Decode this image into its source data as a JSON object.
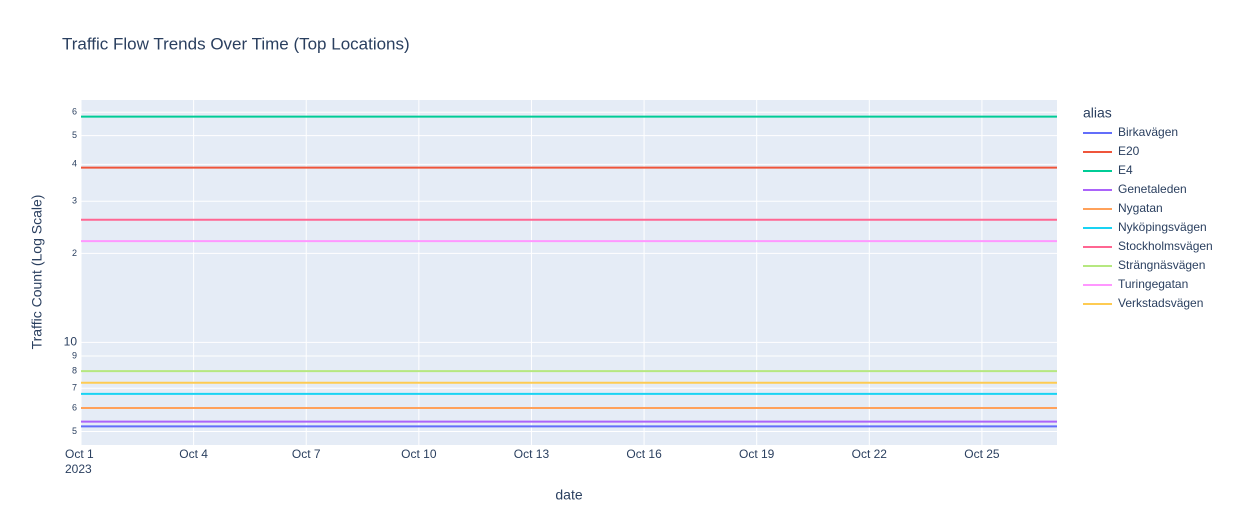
{
  "chart_data": {
    "type": "line",
    "title": "Traffic Flow Trends Over Time (Top Locations)",
    "x_label": "date",
    "y_label": "Traffic Count (Log Scale)",
    "legend_title": "alias",
    "log_y": true,
    "grid": true,
    "legend_position": "right",
    "x": [
      "2023-10-01",
      "2023-10-27"
    ],
    "xlim": [
      "2023-10-01",
      "2023-10-27"
    ],
    "xticks": [
      {
        "value": "2023-10-01",
        "label": "Oct 1\n2023"
      },
      {
        "value": "2023-10-04",
        "label": "Oct 4"
      },
      {
        "value": "2023-10-07",
        "label": "Oct 7"
      },
      {
        "value": "2023-10-10",
        "label": "Oct 10"
      },
      {
        "value": "2023-10-13",
        "label": "Oct 13"
      },
      {
        "value": "2023-10-16",
        "label": "Oct 16"
      },
      {
        "value": "2023-10-19",
        "label": "Oct 19"
      },
      {
        "value": "2023-10-22",
        "label": "Oct 22"
      },
      {
        "value": "2023-10-25",
        "label": "Oct 25"
      }
    ],
    "ylim": [
      4.5,
      66
    ],
    "yticks": [
      5,
      6,
      7,
      8,
      9,
      10,
      {
        "value": 20,
        "label": "2"
      },
      {
        "value": 30,
        "label": "3"
      },
      {
        "value": 40,
        "label": "4"
      },
      {
        "value": 50,
        "label": "5"
      },
      {
        "value": 60,
        "label": "6"
      }
    ],
    "series": [
      {
        "name": "Birkavägen",
        "color": "#636efa",
        "values": [
          5.2,
          5.2
        ]
      },
      {
        "name": "E20",
        "color": "#EF553B",
        "values": [
          39,
          39
        ]
      },
      {
        "name": "E4",
        "color": "#00cc96",
        "values": [
          58,
          58
        ]
      },
      {
        "name": "Genetaleden",
        "color": "#ab63fa",
        "values": [
          5.4,
          5.4
        ]
      },
      {
        "name": "Nygatan",
        "color": "#FFA15A",
        "values": [
          6,
          6
        ]
      },
      {
        "name": "Nyköpingsvägen",
        "color": "#19d3f3",
        "values": [
          6.7,
          6.7
        ]
      },
      {
        "name": "Stockholmsvägen",
        "color": "#FF6692",
        "values": [
          26,
          26
        ]
      },
      {
        "name": "Strängnäsvägen",
        "color": "#B6E880",
        "values": [
          8,
          8
        ]
      },
      {
        "name": "Turingegatan",
        "color": "#FF97FF",
        "values": [
          22,
          22
        ]
      },
      {
        "name": "Verkstadsvägen",
        "color": "#FECB52",
        "values": [
          7.3,
          7.3
        ]
      }
    ]
  }
}
